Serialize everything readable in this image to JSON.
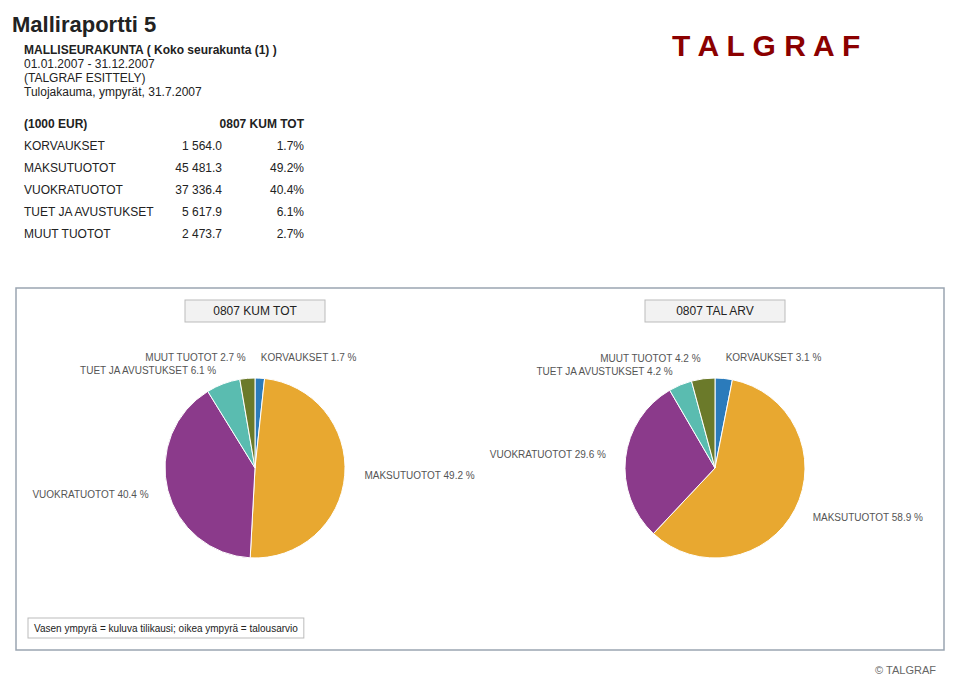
{
  "page": {
    "title": "Malliraportti 5",
    "subtitle": [
      "MALLISEURAKUNTA ( Koko seurakunta (1) )",
      "01.01.2007 - 31.12.2007",
      "(TALGRAF ESITTELY)",
      "Tulojakauma, ympyrät, 31.7.2007"
    ],
    "logo": {
      "text": "T A L G R A F",
      "color": "#8B0000"
    },
    "table": {
      "columns": [
        "(1000 EUR)",
        "0807 KUM TOT"
      ],
      "categories": [
        "KORVAUKSET",
        "MAKSUTUOTOT",
        "VUOKRATUOTOT",
        "TUET JA AVUSTUKSET",
        "MUUT TUOTOT"
      ],
      "values": [
        1564.0,
        45481.3,
        37336.4,
        5617.9,
        2473.7
      ],
      "value_labels": [
        "1 564.0",
        "45 481.3",
        "37 336.4",
        "5 617.9",
        "2 473.7"
      ],
      "shares": [
        1.7,
        49.2,
        40.4,
        6.1,
        2.7
      ],
      "share_labels": [
        "1.7%",
        "49.2%",
        "40.4%",
        "6.1%",
        "2.7%"
      ]
    },
    "footer": "Vasen ympyrä = kuluva tilikausi; oikea ympyrä = talousarvio",
    "copyright": "© TALGRAF"
  },
  "chart_data": [
    {
      "type": "pie",
      "title": "0807 KUM TOT",
      "values": [
        1.7,
        49.2,
        40.4,
        6.1,
        2.7
      ],
      "value_labels": [
        "KORVAUKSET 1.7 %",
        "MAKSUTUOTOT 49.2 %",
        "VUOKRATUOTOT 40.4 %",
        "TUET JA AVUSTUKSET 6.1 %",
        "MUUT TUOTOT 2.7 %"
      ],
      "colors": [
        "#2B7BBB",
        "#E8A830",
        "#8B3A8B",
        "#5ABCB0",
        "#6B7A2A"
      ],
      "data_labels": true
    },
    {
      "type": "pie",
      "title": "0807 TAL ARV",
      "values": [
        3.1,
        58.9,
        29.6,
        4.2,
        4.2
      ],
      "value_labels": [
        "KORVAUKSET 3.1 %",
        "MAKSUTUOTOT 58.9 %",
        "VUOKRATUOTOT 29.6 %",
        "TUET JA AVUSTUKSET 4.2 %",
        "MUUT TUOTOT 4.2 %"
      ],
      "colors": [
        "#2B7BBB",
        "#E8A830",
        "#8B3A8B",
        "#5ABCB0",
        "#6B7A2A"
      ],
      "data_labels": true
    }
  ]
}
